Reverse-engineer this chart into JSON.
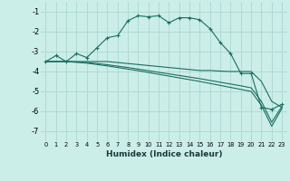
{
  "xlabel": "Humidex (Indice chaleur)",
  "bg_color": "#cceee8",
  "grid_color": "#aad8d0",
  "line_color": "#1a6e60",
  "xlim": [
    -0.5,
    23.5
  ],
  "ylim": [
    -7.5,
    -0.5
  ],
  "yticks": [
    -7,
    -6,
    -5,
    -4,
    -3,
    -2,
    -1
  ],
  "xticks": [
    0,
    1,
    2,
    3,
    4,
    5,
    6,
    7,
    8,
    9,
    10,
    11,
    12,
    13,
    14,
    15,
    16,
    17,
    18,
    19,
    20,
    21,
    22,
    23
  ],
  "curve1_x": [
    0,
    1,
    2,
    3,
    4,
    5,
    6,
    7,
    8,
    9,
    10,
    11,
    12,
    13,
    14,
    15,
    16,
    17,
    18,
    19,
    20,
    21,
    22,
    23
  ],
  "curve1_y": [
    -3.5,
    -3.2,
    -3.5,
    -3.1,
    -3.3,
    -2.8,
    -2.3,
    -2.2,
    -1.45,
    -1.2,
    -1.25,
    -1.2,
    -1.55,
    -1.3,
    -1.3,
    -1.4,
    -1.85,
    -2.55,
    -3.1,
    -4.1,
    -4.1,
    -5.8,
    -5.9,
    -5.65
  ],
  "curve2_x": [
    0,
    2,
    3,
    4,
    5,
    6,
    7,
    8,
    9,
    10,
    11,
    12,
    13,
    14,
    15,
    16,
    17,
    18,
    19,
    20,
    21,
    22,
    23
  ],
  "curve2_y": [
    -3.5,
    -3.5,
    -3.5,
    -3.5,
    -3.5,
    -3.5,
    -3.55,
    -3.6,
    -3.65,
    -3.7,
    -3.75,
    -3.8,
    -3.85,
    -3.9,
    -3.95,
    -3.95,
    -3.98,
    -4.0,
    -4.0,
    -4.0,
    -4.5,
    -5.5,
    -5.8
  ],
  "curve3_x": [
    0,
    2,
    3,
    4,
    5,
    6,
    7,
    8,
    9,
    10,
    11,
    12,
    13,
    14,
    15,
    16,
    17,
    18,
    19,
    20,
    21,
    22,
    23
  ],
  "curve3_y": [
    -3.5,
    -3.5,
    -3.52,
    -3.55,
    -3.6,
    -3.66,
    -3.73,
    -3.8,
    -3.88,
    -3.96,
    -4.04,
    -4.12,
    -4.2,
    -4.28,
    -4.36,
    -4.45,
    -4.54,
    -4.63,
    -4.72,
    -4.82,
    -5.5,
    -6.55,
    -5.75
  ],
  "curve4_x": [
    0,
    2,
    3,
    4,
    5,
    6,
    7,
    8,
    9,
    10,
    11,
    12,
    13,
    14,
    15,
    16,
    17,
    18,
    19,
    20,
    21,
    22,
    23
  ],
  "curve4_y": [
    -3.5,
    -3.5,
    -3.54,
    -3.58,
    -3.65,
    -3.72,
    -3.8,
    -3.88,
    -3.96,
    -4.05,
    -4.14,
    -4.23,
    -4.32,
    -4.41,
    -4.5,
    -4.6,
    -4.7,
    -4.8,
    -4.9,
    -5.0,
    -5.7,
    -6.75,
    -5.85
  ]
}
